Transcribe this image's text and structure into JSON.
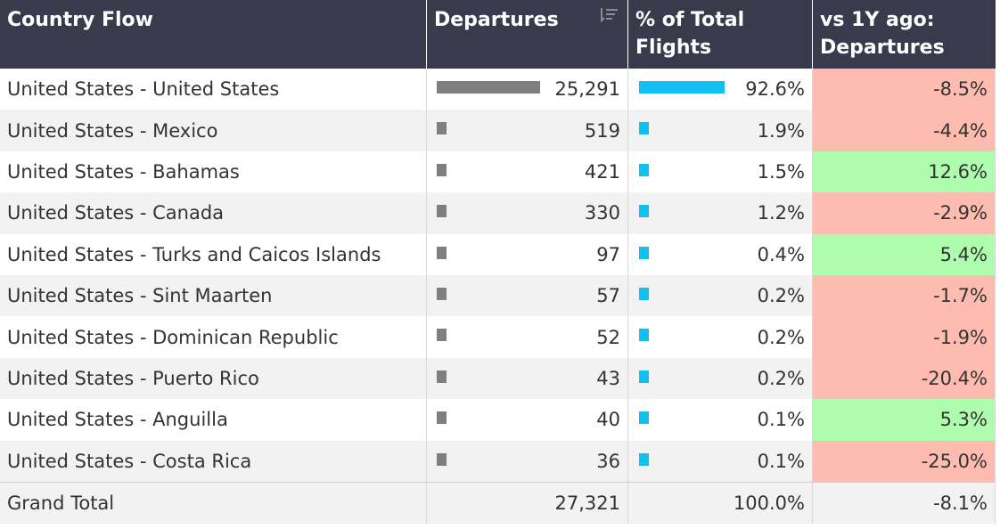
{
  "columns": {
    "country_flow": "Country Flow",
    "departures": "Departures",
    "pct_total_line1": "% of Total",
    "pct_total_line2": "Flights",
    "yoy_line1": "vs 1Y ago:",
    "yoy_line2": "Departures"
  },
  "colors": {
    "header_bg": "#393a4b",
    "departures_bar": "#7f7f7f",
    "pct_bar": "#11bff1",
    "negative_bg": "#fdbcaf",
    "positive_bg": "#aefcad"
  },
  "rows": [
    {
      "name": "United States - United States",
      "departures": "25,291",
      "departures_value": 25291,
      "pct": "92.6%",
      "pct_value": 92.6,
      "yoy": "-8.5%",
      "yoy_sign": "negative"
    },
    {
      "name": "United States - Mexico",
      "departures": "519",
      "departures_value": 519,
      "pct": "1.9%",
      "pct_value": 1.9,
      "yoy": "-4.4%",
      "yoy_sign": "negative"
    },
    {
      "name": "United States - Bahamas",
      "departures": "421",
      "departures_value": 421,
      "pct": "1.5%",
      "pct_value": 1.5,
      "yoy": "12.6%",
      "yoy_sign": "positive"
    },
    {
      "name": "United States - Canada",
      "departures": "330",
      "departures_value": 330,
      "pct": "1.2%",
      "pct_value": 1.2,
      "yoy": "-2.9%",
      "yoy_sign": "negative"
    },
    {
      "name": "United States - Turks and Caicos Islands",
      "departures": "97",
      "departures_value": 97,
      "pct": "0.4%",
      "pct_value": 0.4,
      "yoy": "5.4%",
      "yoy_sign": "positive"
    },
    {
      "name": "United States - Sint Maarten",
      "departures": "57",
      "departures_value": 57,
      "pct": "0.2%",
      "pct_value": 0.2,
      "yoy": "-1.7%",
      "yoy_sign": "negative"
    },
    {
      "name": "United States - Dominican Republic",
      "departures": "52",
      "departures_value": 52,
      "pct": "0.2%",
      "pct_value": 0.2,
      "yoy": "-1.9%",
      "yoy_sign": "negative"
    },
    {
      "name": "United States - Puerto Rico",
      "departures": "43",
      "departures_value": 43,
      "pct": "0.2%",
      "pct_value": 0.2,
      "yoy": "-20.4%",
      "yoy_sign": "negative"
    },
    {
      "name": "United States - Anguilla",
      "departures": "40",
      "departures_value": 40,
      "pct": "0.1%",
      "pct_value": 0.1,
      "yoy": "5.3%",
      "yoy_sign": "positive"
    },
    {
      "name": "United States - Costa Rica",
      "departures": "36",
      "departures_value": 36,
      "pct": "0.1%",
      "pct_value": 0.1,
      "yoy": "-25.0%",
      "yoy_sign": "negative"
    }
  ],
  "total": {
    "label": "Grand Total",
    "departures": "27,321",
    "pct": "100.0%",
    "yoy": "-8.1%"
  },
  "icons": {
    "departures_sort": "sort-descending-icon"
  }
}
